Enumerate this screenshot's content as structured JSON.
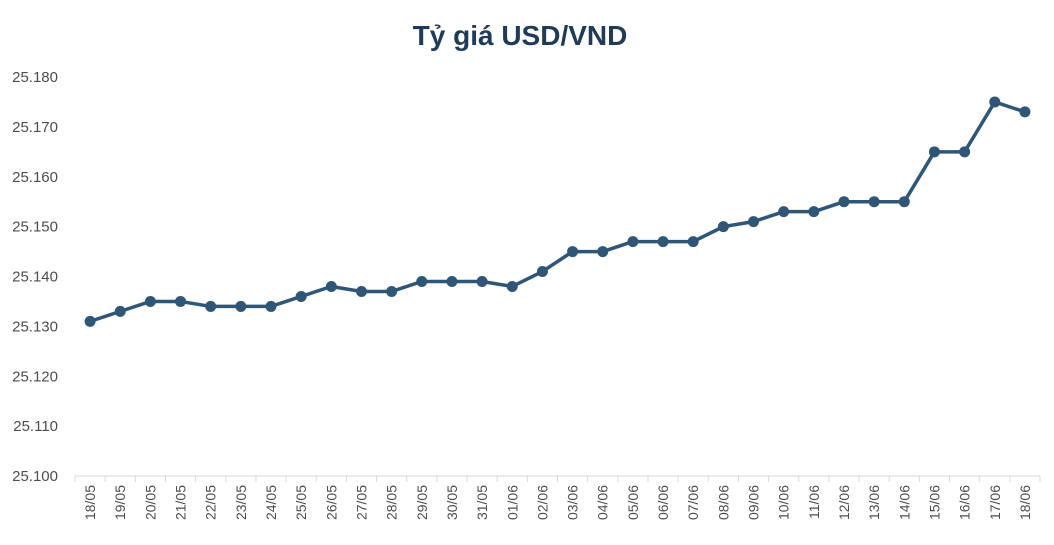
{
  "chart_data": {
    "type": "line",
    "title": "Tỷ giá USD/VND",
    "xlabel": "",
    "ylabel": "",
    "x": [
      "18/05",
      "19/05",
      "20/05",
      "21/05",
      "22/05",
      "23/05",
      "24/05",
      "25/05",
      "26/05",
      "27/05",
      "28/05",
      "29/05",
      "30/05",
      "31/05",
      "01/06",
      "02/06",
      "03/06",
      "04/06",
      "05/06",
      "06/06",
      "07/06",
      "08/06",
      "09/06",
      "10/06",
      "11/06",
      "12/06",
      "13/06",
      "14/06",
      "15/06",
      "16/06",
      "17/06",
      "18/06"
    ],
    "series": [
      {
        "values": [
          25131,
          25133,
          25135,
          25135,
          25134,
          25134,
          25134,
          25136,
          25138,
          25137,
          25137,
          25139,
          25139,
          25139,
          25138,
          25141,
          25145,
          25145,
          25147,
          25147,
          25147,
          25150,
          25151,
          25153,
          25153,
          25155,
          25155,
          25155,
          25165,
          25165,
          25175,
          25173
        ]
      }
    ],
    "ylim": [
      25100,
      25180
    ],
    "yticks": [
      25100,
      25110,
      25120,
      25130,
      25140,
      25150,
      25160,
      25170,
      25180
    ],
    "ytick_labels": [
      "25.100",
      "25.110",
      "25.120",
      "25.130",
      "25.140",
      "25.150",
      "25.160",
      "25.170",
      "25.180"
    ],
    "grid": false,
    "line_color": "#2f5677",
    "axis_color": "#d9d9d9"
  }
}
